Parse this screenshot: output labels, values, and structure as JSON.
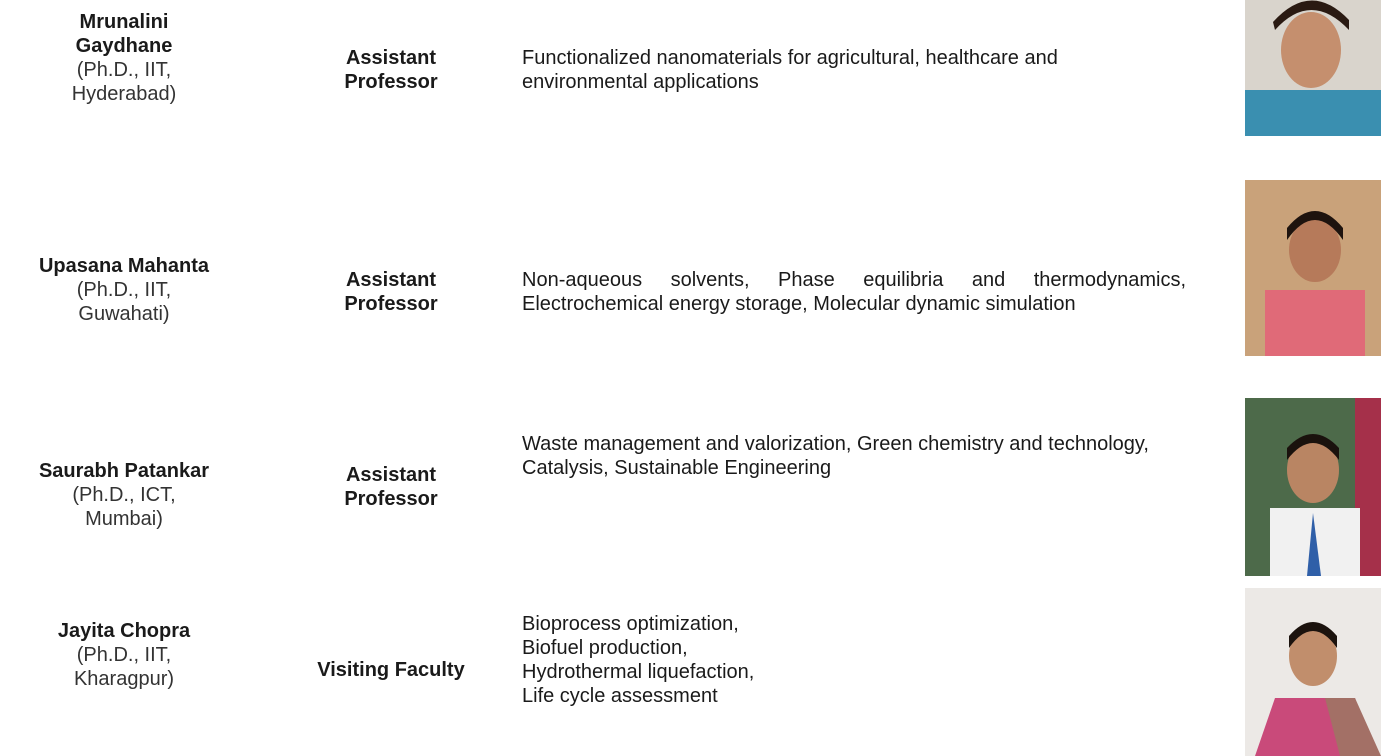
{
  "rows": [
    {
      "name": "Mrunalini Gaydhane",
      "qualification": [
        "(Ph.D., IIT,",
        "Hyderabad)"
      ],
      "designation": "Assistant Professor",
      "research": [
        "Functionalized nanomaterials for agricultural, healthcare and environmental applications"
      ]
    },
    {
      "name": "Upasana Mahanta",
      "qualification": [
        "(Ph.D., IIT,",
        "Guwahati)"
      ],
      "designation": "Assistant Professor",
      "research": [
        "Non-aqueous solvents, Phase equilibria and thermodynamics, Electrochemical energy storage, Molecular dynamic simulation"
      ]
    },
    {
      "name": "Saurabh Patankar",
      "qualification": [
        "(Ph.D., ICT,",
        "Mumbai)"
      ],
      "designation": "Assistant Professor",
      "research": [
        "Waste management and valorization, Green chemistry and technology, Catalysis, Sustainable Engineering"
      ]
    },
    {
      "name": "Jayita Chopra",
      "qualification": [
        "(Ph.D., IIT,",
        "Kharagpur)"
      ],
      "designation": "Visiting Faculty",
      "research": [
        "Bioprocess optimization,",
        "Biofuel production,",
        "Hydrothermal liquefaction,",
        "Life cycle assessment"
      ]
    }
  ]
}
